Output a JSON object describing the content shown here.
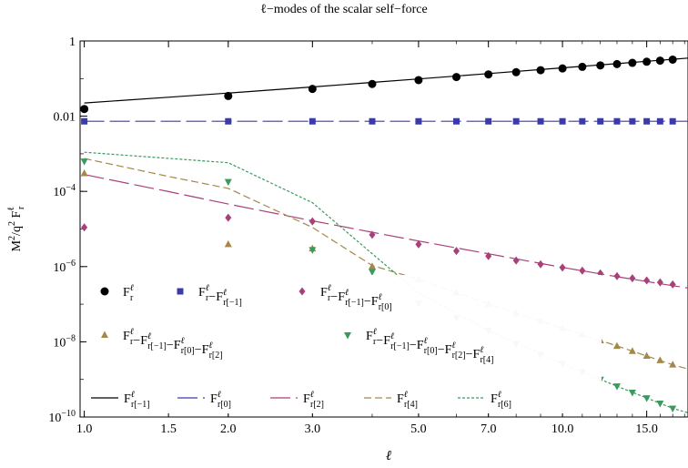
{
  "chart_data": {
    "type": "scatter",
    "title": "ℓ−modes of the scalar self−force",
    "xlabel": "ℓ",
    "ylabel": "M² / q² F_r^ℓ",
    "x_scale": "log",
    "y_scale": "log",
    "xlim": [
      0.98,
      18.3
    ],
    "ylim": [
      1e-10,
      1
    ],
    "x_ticks": [
      {
        "value": 1,
        "label": "1.0"
      },
      {
        "value": 1.5,
        "label": "1.5"
      },
      {
        "value": 2,
        "label": "2.0"
      },
      {
        "value": 3,
        "label": "3.0"
      },
      {
        "value": 5,
        "label": "5.0"
      },
      {
        "value": 7,
        "label": "7.0"
      },
      {
        "value": 10,
        "label": "10.0"
      },
      {
        "value": 15,
        "label": "15.0"
      }
    ],
    "y_ticks": [
      {
        "value": 1,
        "label": "1"
      },
      {
        "value": 0.01,
        "label": "0.01"
      },
      {
        "value": 0.0001,
        "label": "10^-4"
      },
      {
        "value": 1e-06,
        "label": "10^-6"
      },
      {
        "value": 1e-08,
        "label": "10^-8"
      },
      {
        "value": 1e-10,
        "label": "10^-10"
      }
    ],
    "grid": false,
    "legend_position": "bottom-left",
    "series": [
      {
        "name": "F_r^ℓ",
        "kind": "points",
        "marker": "circle",
        "color": "#000000",
        "x": [
          1,
          2,
          3,
          4,
          5,
          6,
          7,
          8,
          9,
          10,
          11,
          12,
          13,
          14,
          15,
          16,
          17
        ],
        "y": [
          0.0155,
          0.0345,
          0.053,
          0.072,
          0.091,
          0.11,
          0.129,
          0.148,
          0.167,
          0.186,
          0.205,
          0.224,
          0.243,
          0.262,
          0.281,
          0.3,
          0.319
        ]
      },
      {
        "name": "F_r^ℓ−F_r[−1]^ℓ",
        "kind": "points",
        "marker": "square",
        "color": "#3b3ba8",
        "x": [
          1,
          2,
          3,
          4,
          5,
          6,
          7,
          8,
          9,
          10,
          11,
          12,
          13,
          14,
          15,
          16,
          17
        ],
        "y": [
          0.0073,
          0.0073,
          0.0073,
          0.0073,
          0.0073,
          0.0073,
          0.0073,
          0.0073,
          0.0073,
          0.0073,
          0.0073,
          0.0073,
          0.0073,
          0.0073,
          0.0073,
          0.0073,
          0.0073
        ]
      },
      {
        "name": "F_r^ℓ−F_r[−1]^ℓ−F_r[0]^ℓ",
        "kind": "points",
        "marker": "diamond",
        "color": "#a8407a",
        "x": [
          1,
          2,
          3,
          4,
          5,
          6,
          7,
          8,
          9,
          10,
          11,
          12,
          13,
          14,
          15,
          16,
          17
        ],
        "y": [
          1.1e-05,
          2e-05,
          1.6e-05,
          7e-06,
          3.9e-06,
          2.6e-06,
          1.9e-06,
          1.45e-06,
          1.15e-06,
          9.4e-07,
          7.8e-07,
          6.6e-07,
          5.6e-07,
          4.9e-07,
          4.3e-07,
          3.8e-07,
          3.35e-07
        ]
      },
      {
        "name": "F_r^ℓ−F_r[−1]^ℓ−F_r[0]^ℓ−F_r[2]^ℓ",
        "kind": "points",
        "marker": "triangle-up",
        "color": "#a3884a",
        "x": [
          1,
          2,
          3,
          4,
          5,
          6,
          7,
          8,
          9,
          10,
          11,
          12,
          13,
          14,
          15,
          16,
          17
        ],
        "y": [
          0.0003,
          3.9e-06,
          3e-06,
          1e-06,
          4.5e-07,
          2e-07,
          1e-07,
          5.7e-08,
          3.5e-08,
          2.3e-08,
          1.55e-08,
          1.08e-08,
          7.7e-09,
          5.6e-09,
          4.2e-09,
          3.2e-09,
          2.45e-09
        ]
      },
      {
        "name": "F_r^ℓ−F_r[−1]^ℓ−F_r[0]^ℓ−F_r[2]^ℓ−F_r[4]^ℓ",
        "kind": "points",
        "marker": "triangle-down",
        "color": "#3a9a5e",
        "x": [
          1,
          2,
          3,
          4,
          5,
          6,
          7,
          8,
          9,
          10,
          11,
          12,
          13,
          14,
          15,
          16,
          17
        ],
        "y": [
          0.00063,
          0.00018,
          2.8e-06,
          7.3e-07,
          1.05e-07,
          4.3e-08,
          2e-08,
          8.8e-09,
          4.5e-09,
          2.6e-09,
          1.6e-09,
          1e-09,
          6.6e-10,
          4.5e-10,
          3.2e-10,
          2.3e-10,
          1.7e-10
        ]
      },
      {
        "name": "F_r[−1]^ℓ",
        "kind": "line",
        "dash": "solid",
        "color": "#000000",
        "x": [
          1,
          1.5,
          2,
          3,
          4,
          5,
          7,
          10,
          13,
          15,
          17,
          18.3
        ],
        "y": [
          0.0225,
          0.0318,
          0.0412,
          0.06,
          0.079,
          0.098,
          0.136,
          0.193,
          0.25,
          0.288,
          0.326,
          0.35
        ]
      },
      {
        "name": "F_r[0]^ℓ",
        "kind": "line",
        "dash": "long",
        "color": "#3b3ba8",
        "x": [
          1,
          18.3
        ],
        "y": [
          0.0073,
          0.0073
        ]
      },
      {
        "name": "F_r[2]^ℓ",
        "kind": "line",
        "dash": "long",
        "color": "#a8407a",
        "x": [
          1,
          1.5,
          2,
          3,
          4,
          5,
          7,
          10,
          13,
          15,
          17,
          18.3
        ],
        "y": [
          0.00028,
          9.9e-05,
          4.6e-05,
          1.65e-05,
          8.2e-06,
          4.8e-06,
          2.2e-06,
          9.5e-07,
          5.4e-07,
          4e-07,
          3.1e-07,
          2.7e-07
        ]
      },
      {
        "name": "F_r[4]^ℓ",
        "kind": "line",
        "dash": "medium",
        "color": "#a3884a",
        "x": [
          1,
          1.5,
          2,
          3,
          4,
          5,
          7,
          10,
          13,
          15,
          17,
          18.3
        ],
        "y": [
          0.00075,
          0.00025,
          0.00012,
          1.1e-05,
          1.07e-06,
          4.6e-07,
          1.02e-07,
          2.3e-08,
          7.8e-09,
          4.2e-09,
          2.45e-09,
          1.9e-09
        ]
      },
      {
        "name": "F_r[6]^ℓ",
        "kind": "line",
        "dash": "short",
        "color": "#3a9a5e",
        "x": [
          1,
          2,
          3,
          4,
          5,
          7,
          10,
          13,
          15,
          17,
          18.3
        ],
        "y": [
          0.0011,
          0.00058,
          5e-05,
          2.2e-06,
          2e-07,
          2e-08,
          2.6e-09,
          6.6e-10,
          3.2e-10,
          1.7e-10,
          1.3e-10
        ]
      }
    ],
    "legend_rows": [
      [
        0,
        1,
        2
      ],
      [
        3,
        4
      ],
      [
        5,
        6,
        7,
        8,
        9
      ]
    ]
  }
}
